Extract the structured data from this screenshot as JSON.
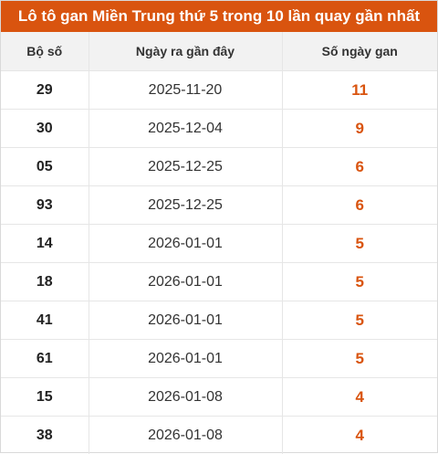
{
  "title": "Lô tô gan Miền Trung thứ 5 trong 10 lần quay gần nhất",
  "accent_color": "#d9540f",
  "columns": [
    "Bộ số",
    "Ngày ra gần đây",
    "Số ngày gan"
  ],
  "rows": [
    {
      "number": "29",
      "date": "2025-11-20",
      "days": "11"
    },
    {
      "number": "30",
      "date": "2025-12-04",
      "days": "9"
    },
    {
      "number": "05",
      "date": "2025-12-25",
      "days": "6"
    },
    {
      "number": "93",
      "date": "2025-12-25",
      "days": "6"
    },
    {
      "number": "14",
      "date": "2026-01-01",
      "days": "5"
    },
    {
      "number": "18",
      "date": "2026-01-01",
      "days": "5"
    },
    {
      "number": "41",
      "date": "2026-01-01",
      "days": "5"
    },
    {
      "number": "61",
      "date": "2026-01-01",
      "days": "5"
    },
    {
      "number": "15",
      "date": "2026-01-08",
      "days": "4"
    },
    {
      "number": "38",
      "date": "2026-01-08",
      "days": "4"
    }
  ]
}
